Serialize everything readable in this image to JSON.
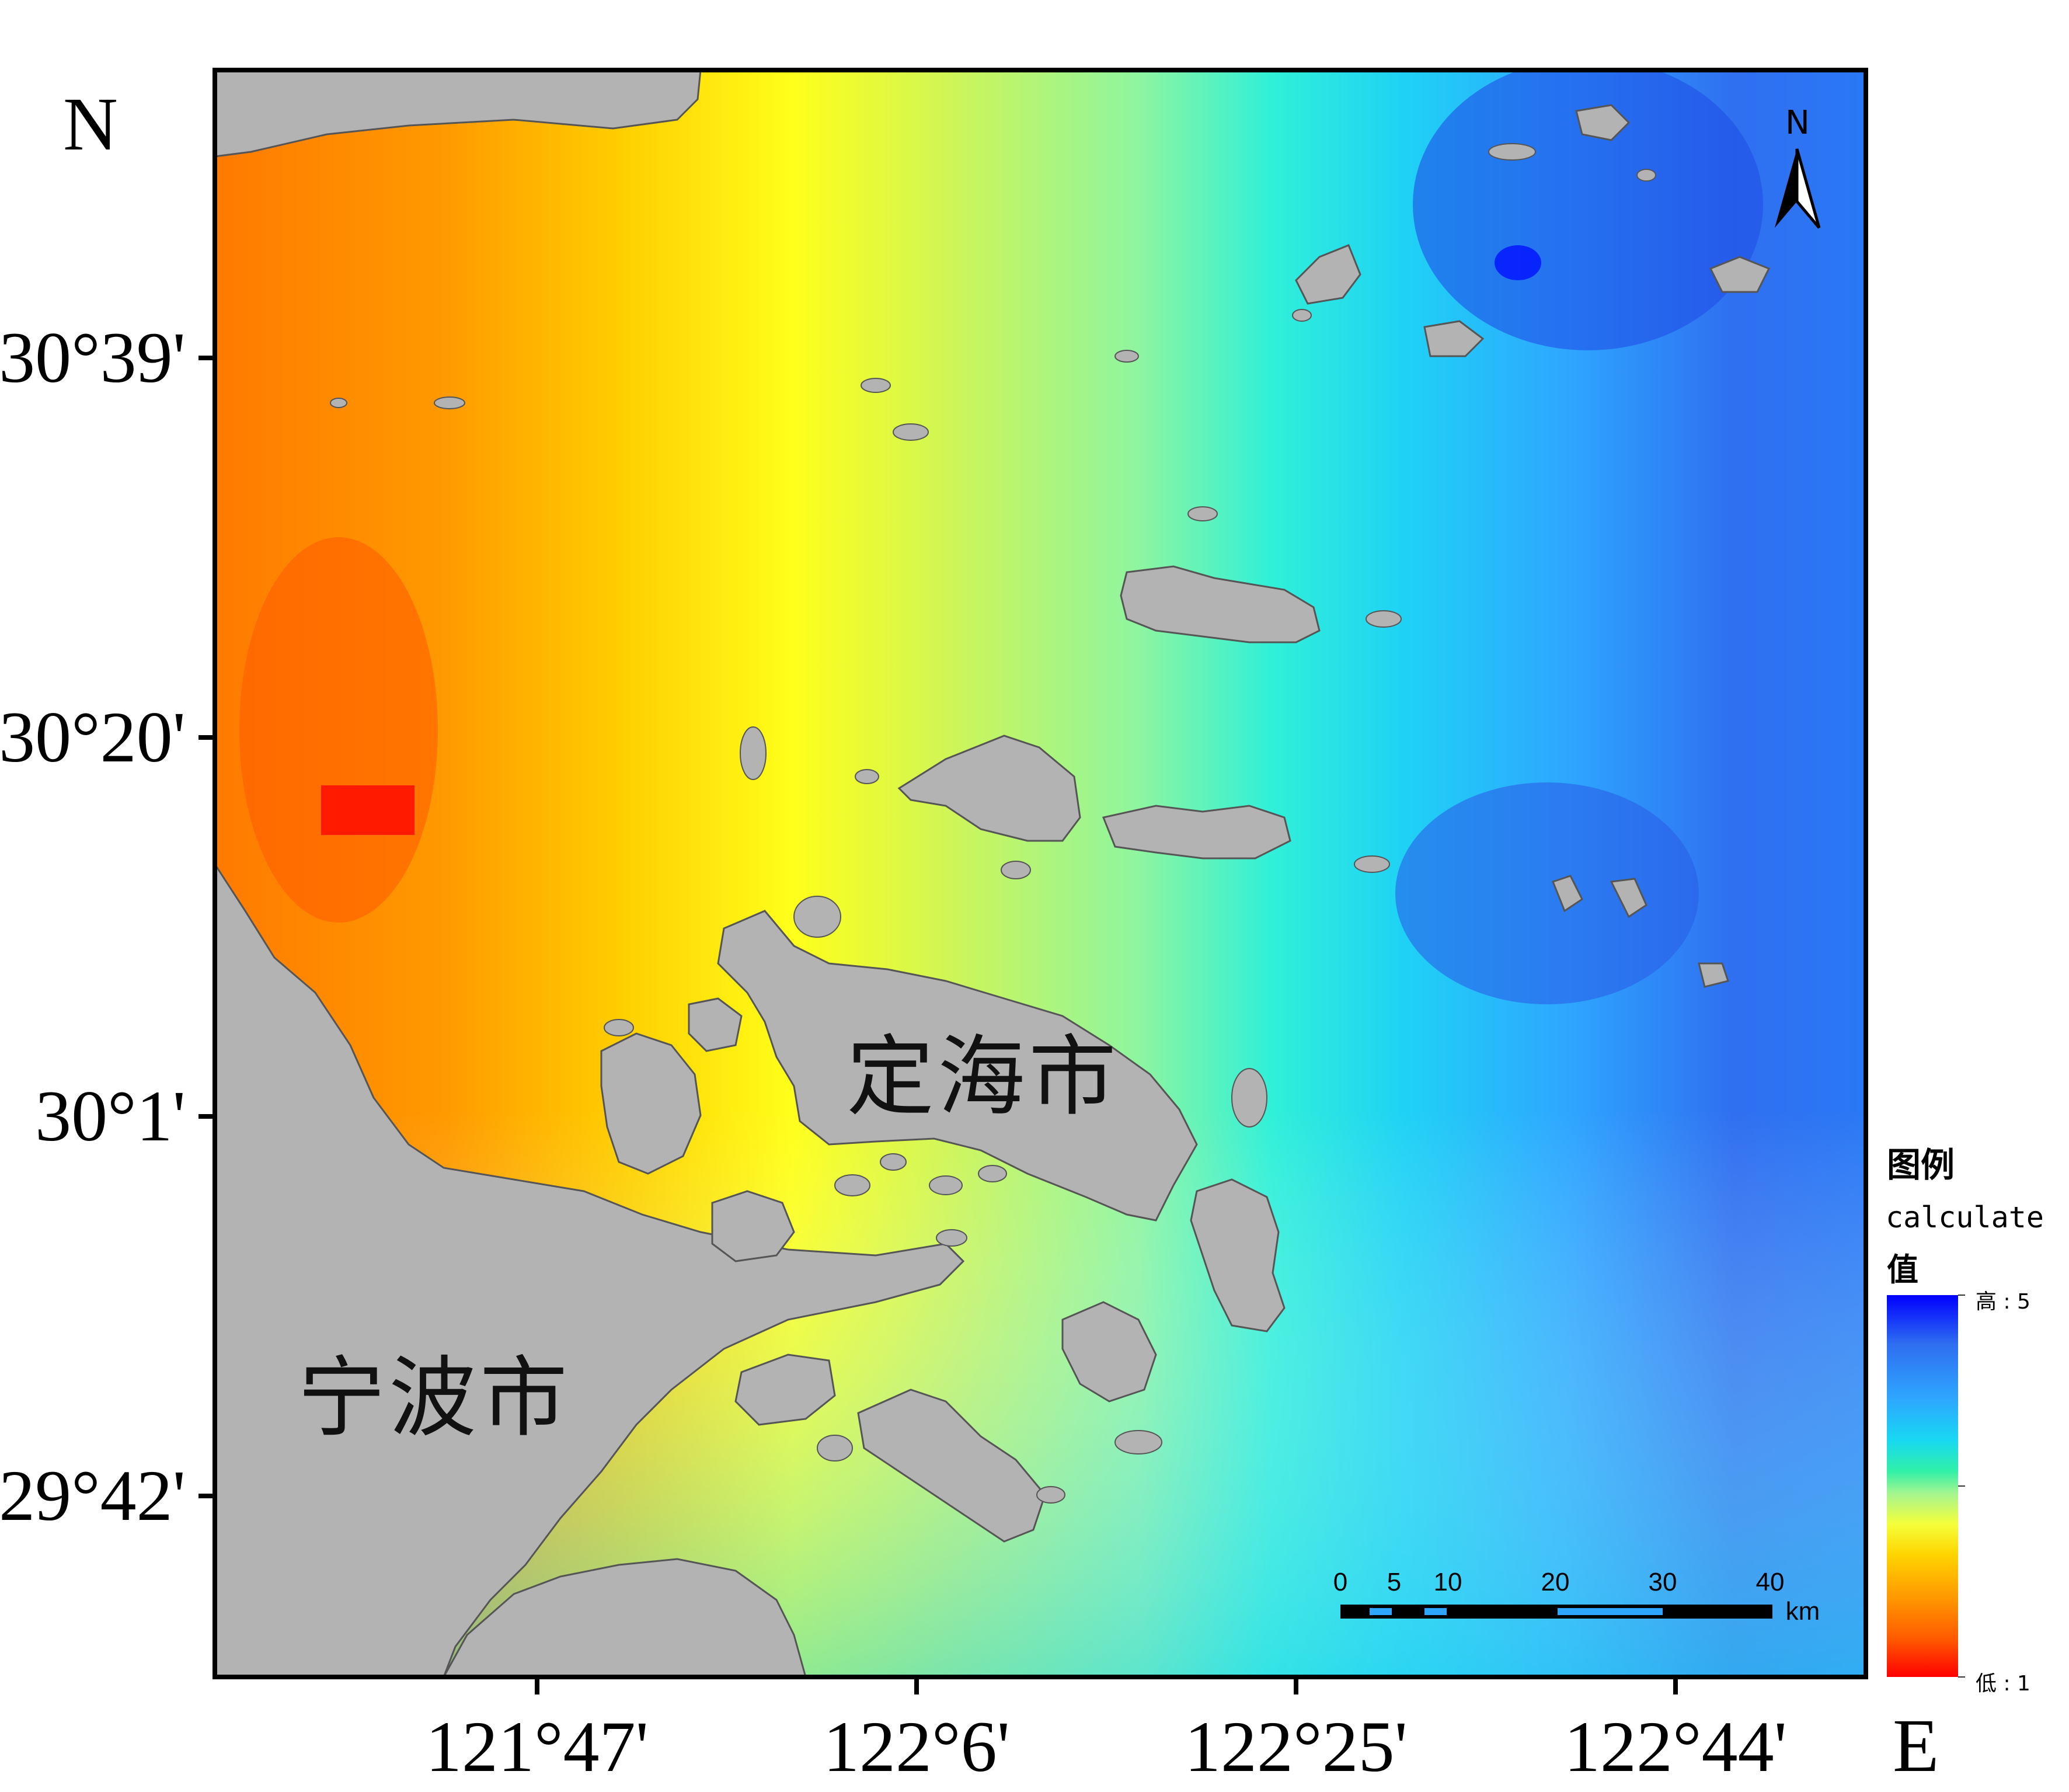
{
  "map": {
    "north_label": "N",
    "east_label": "E",
    "latitude_labels": [
      "30°39'",
      "30°20'",
      "30°1'",
      "29°42'"
    ],
    "longitude_labels": [
      "121°47'",
      "122°6'",
      "122°25'",
      "122°44'"
    ],
    "place_labels": {
      "zhoushan": "定海市",
      "ningbo": "宁波市"
    },
    "compass_label": "N",
    "scale_bar": {
      "ticks": [
        "0",
        "5",
        "10",
        "20",
        "30",
        "40"
      ],
      "unit": "km"
    },
    "colors": {
      "land": "#b3b3b3",
      "coast": "#555555",
      "frame": "#000000"
    }
  },
  "legend": {
    "title": "图例",
    "field": "calculate",
    "field_unit": "值",
    "high_label": "高 : 5",
    "low_label": "低 : 1",
    "gradient_colors": [
      "#0000ff",
      "#2f7bff",
      "#18d3f2",
      "#20f0c0",
      "#a6f590",
      "#ffff00",
      "#ffb000",
      "#ff6600",
      "#ff0000"
    ]
  }
}
